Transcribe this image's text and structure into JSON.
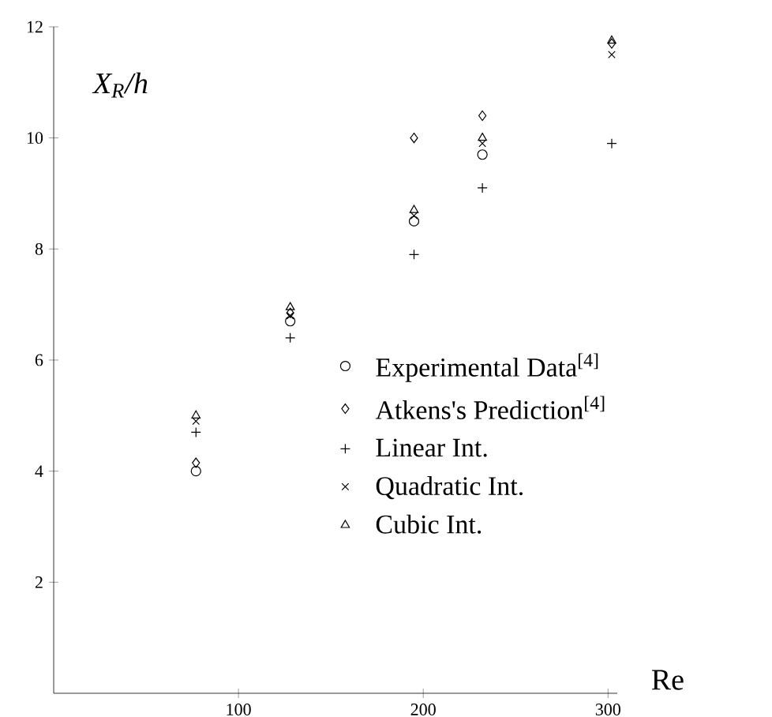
{
  "chart_data": {
    "type": "scatter",
    "xlabel": "Re",
    "ylabel": "X$_{R}$/h",
    "x": [
      77,
      128,
      195,
      232,
      302
    ],
    "series": [
      {
        "name": "Experimental Data$^{[4]}$",
        "color": "#000000",
        "marker": "circle",
        "values": [
          4.0,
          6.7,
          8.5,
          9.7,
          null
        ]
      },
      {
        "name": "Atkens's Prediction$^{[4]}$",
        "color": "#000000",
        "marker": "diamond",
        "values": [
          4.15,
          6.85,
          10.0,
          10.4,
          11.7
        ]
      },
      {
        "name": "Linear Int.",
        "color": "#000000",
        "marker": "plus",
        "values": [
          4.7,
          6.4,
          7.9,
          9.1,
          9.9
        ]
      },
      {
        "name": "Quadratic Int.",
        "color": "#000000",
        "marker": "cross",
        "values": [
          4.9,
          6.8,
          8.6,
          9.9,
          11.5
        ]
      },
      {
        "name": "Cubic Int.",
        "color": "#000000",
        "marker": "triangle",
        "values": [
          5.0,
          6.95,
          8.7,
          10.0,
          11.75
        ]
      }
    ],
    "xlim": [
      0,
      305
    ],
    "ylim": [
      0,
      12
    ],
    "xticks": [
      100,
      200,
      300
    ],
    "yticks": [
      2,
      4,
      6,
      8,
      10,
      12
    ],
    "grid": false,
    "legend": "right"
  }
}
